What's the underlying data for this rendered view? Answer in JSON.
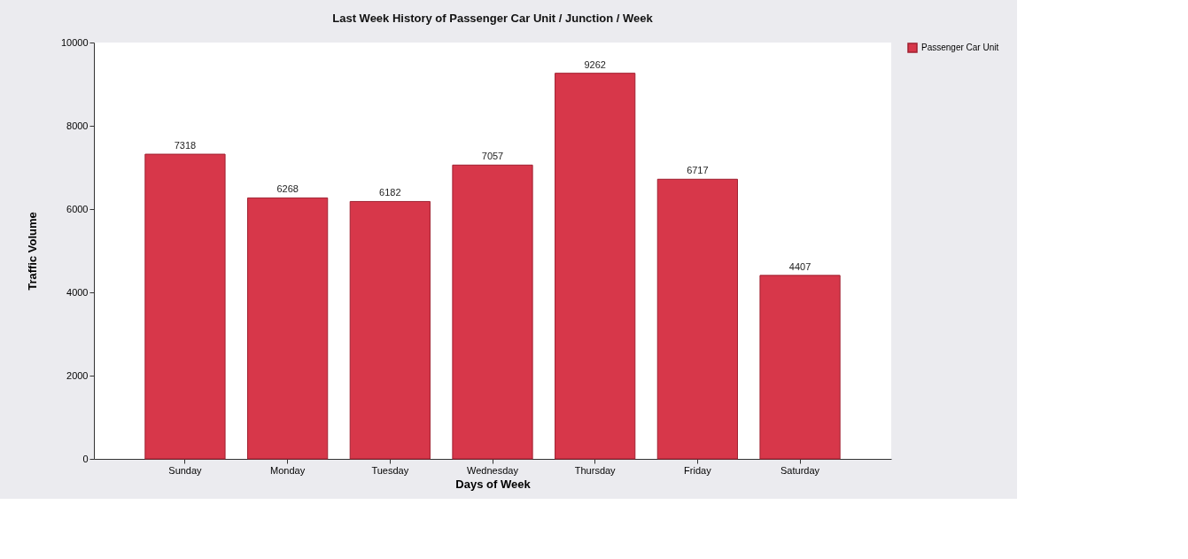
{
  "chart_data": {
    "type": "bar",
    "title": "Last Week History of Passenger Car Unit / Junction / Week",
    "xlabel": "Days of Week",
    "ylabel": "Traffic Volume",
    "categories": [
      "Sunday",
      "Monday",
      "Tuesday",
      "Wednesday",
      "Thursday",
      "Friday",
      "Saturday"
    ],
    "series": [
      {
        "name": "Passenger Car Unit",
        "color": "#d7374a",
        "values": [
          7318,
          6268,
          6182,
          7057,
          9262,
          6717,
          4407
        ]
      }
    ],
    "ylim": [
      0,
      10000
    ],
    "yticks": [
      0,
      2000,
      4000,
      6000,
      8000,
      10000
    ],
    "grid": false,
    "legend": "top right",
    "data_labels": true
  }
}
